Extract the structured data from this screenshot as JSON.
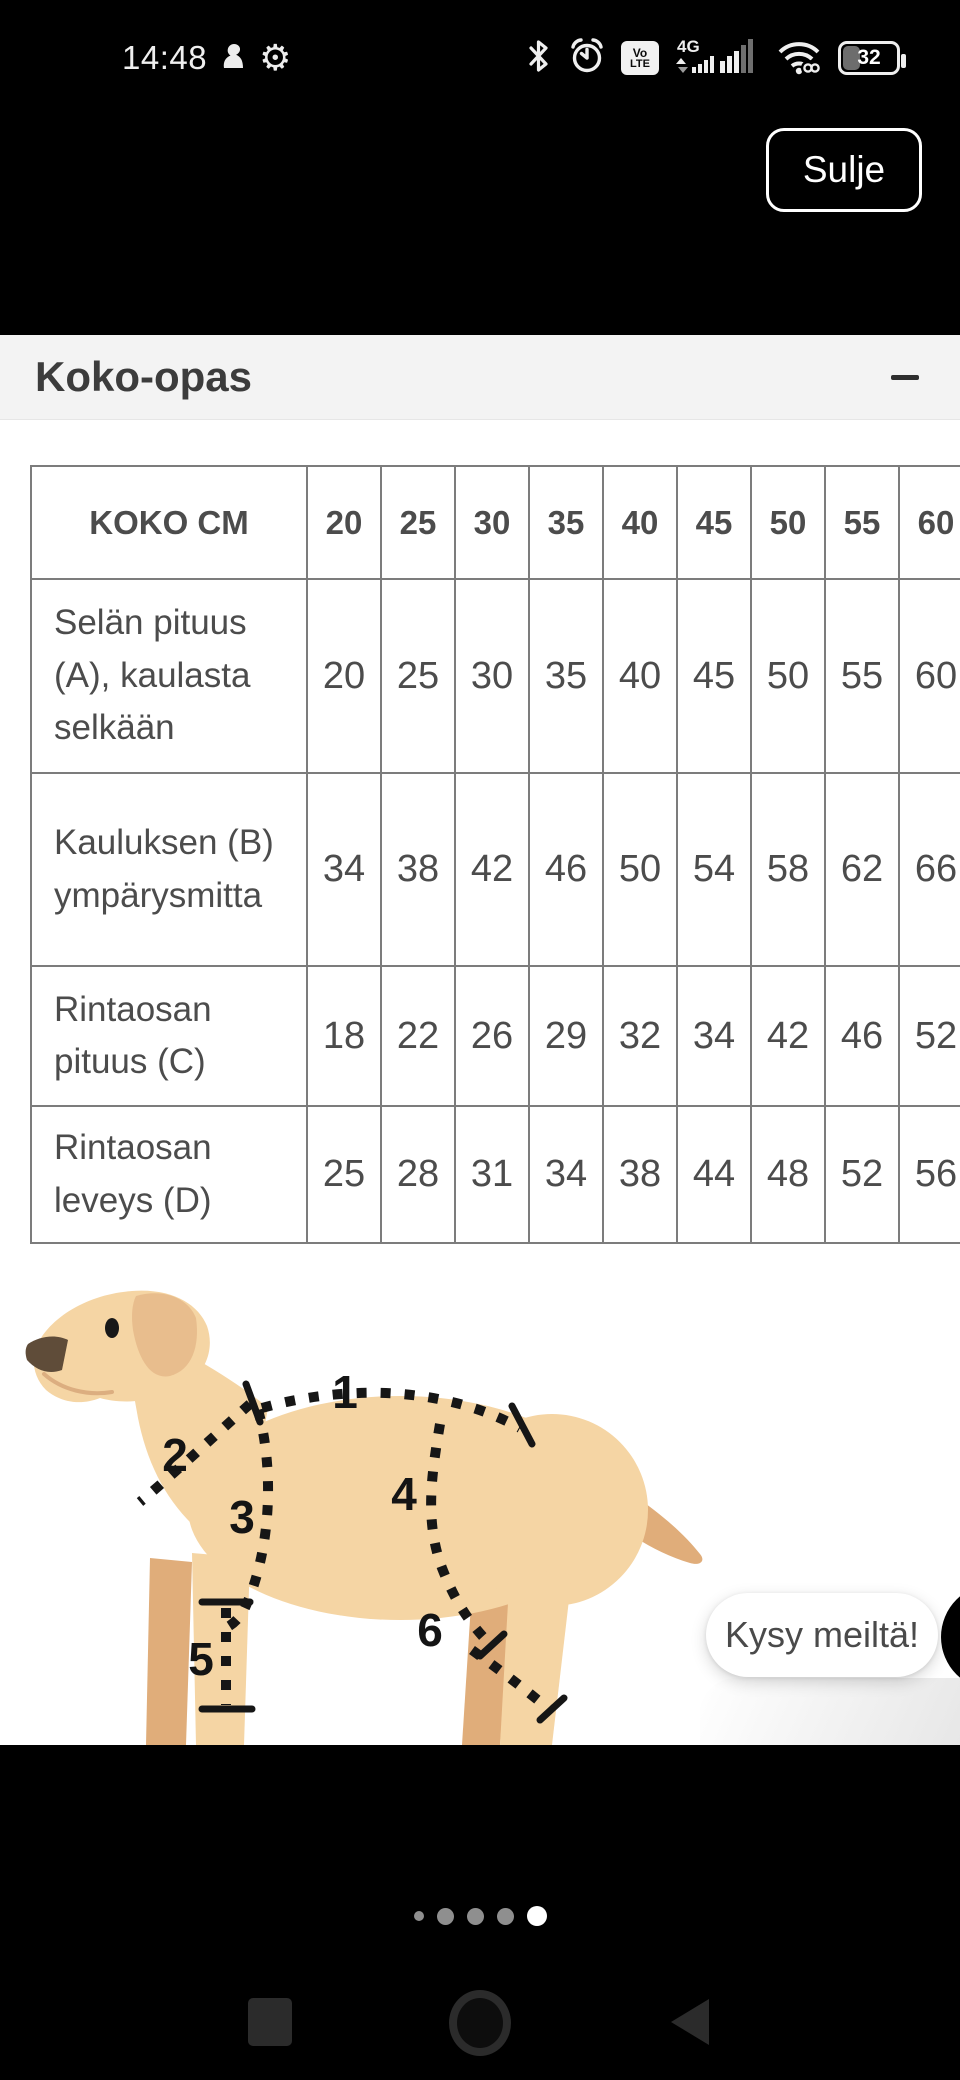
{
  "status_bar": {
    "time": "14:48",
    "network_label": "4G",
    "volte": {
      "line1": "Vo",
      "line2": "LTE"
    },
    "battery_level": "32",
    "icons": [
      "bird-icon",
      "gear-icon",
      "bluetooth-icon",
      "alarm-clock-icon",
      "volte-badge",
      "signal-bars-icon",
      "wifi-icon",
      "battery-icon"
    ]
  },
  "close_button": {
    "label": "Sulje"
  },
  "size_guide": {
    "title": "Koko-opas",
    "collapse_icon": "minus",
    "table": {
      "columns": [
        "KOKO CM",
        "20",
        "25",
        "30",
        "35",
        "40",
        "45",
        "50",
        "55",
        "60"
      ],
      "rows": [
        {
          "label": "Selän pituus (A), kaulasta selkään",
          "values": [
            "20",
            "25",
            "30",
            "35",
            "40",
            "45",
            "50",
            "55",
            "60"
          ]
        },
        {
          "label": "Kauluksen (B) ympärysmitta",
          "values": [
            "34",
            "38",
            "42",
            "46",
            "50",
            "54",
            "58",
            "62",
            "66"
          ]
        },
        {
          "label": "Rintaosan pituus (C)",
          "values": [
            "18",
            "22",
            "26",
            "29",
            "32",
            "34",
            "42",
            "46",
            "52"
          ]
        },
        {
          "label": "Rintaosan leveys (D)",
          "values": [
            "25",
            "28",
            "31",
            "34",
            "38",
            "44",
            "48",
            "52",
            "56"
          ]
        }
      ]
    },
    "diagram_labels": [
      "1",
      "2",
      "3",
      "4",
      "5",
      "6"
    ]
  },
  "chat": {
    "label": "Kysy meiltä!"
  },
  "pagination": {
    "dots": [
      "small",
      "medium",
      "medium",
      "medium",
      "active"
    ],
    "active_index": 4
  },
  "colors": {
    "dog_light": "#f5d5a4",
    "dog_shade": "#e8bd8d",
    "dog_dark": "#e0ad7a",
    "dog_nose": "#5f4c39",
    "panel_header_bg": "#f3f3f3",
    "table_border": "#7c7c7c",
    "active_dot": "#ffffff"
  }
}
